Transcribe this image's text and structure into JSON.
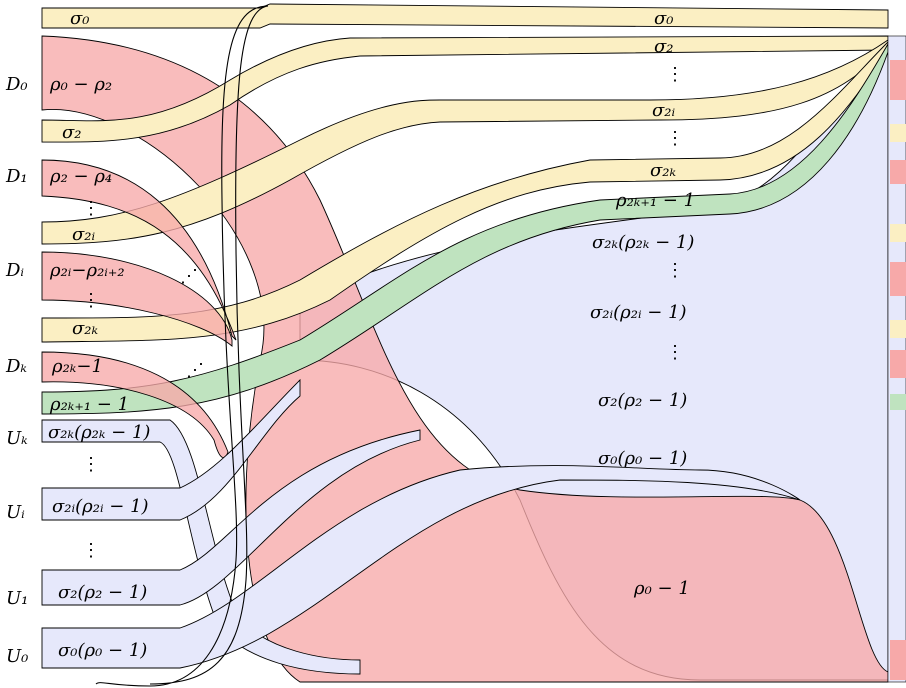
{
  "diagram": {
    "left_row_labels": {
      "D0": "D₀",
      "D1": "D₁",
      "Di": "Dᵢ",
      "Dk": "Dₖ",
      "Uk": "Uₖ",
      "Ui": "Uᵢ",
      "U1": "U₁",
      "U0": "U₀"
    },
    "left_band_labels": {
      "sigma0": "σ₀",
      "rho0_minus_rho2": "ρ₀ − ρ₂",
      "sigma2": "σ₂",
      "rho2_minus_rho4": "ρ₂ − ρ₄",
      "sigma2i": "σ₂ᵢ",
      "rho2i_minus_rho2i2": "ρ₂ᵢ−ρ₂ᵢ₊₂",
      "sigma2k": "σ₂ₖ",
      "rho2k_minus1": "ρ₂ₖ−1",
      "rho2k1_minus1": "ρ₂ₖ₊₁ − 1",
      "sigma2k_rho2k_minus1": "σ₂ₖ(ρ₂ₖ − 1)",
      "sigma2i_rho2i_minus1": "σ₂ᵢ(ρ₂ᵢ − 1)",
      "sigma2_rho2_minus1": "σ₂(ρ₂ − 1)",
      "sigma0_rho0_minus1": "σ₀(ρ₀ − 1)"
    },
    "right_band_labels": {
      "sigma0": "σ₀",
      "sigma2": "σ₂",
      "sigma2i": "σ₂ᵢ",
      "sigma2k": "σ₂ₖ",
      "rho2k1_minus1": "ρ₂ₖ₊₁ − 1",
      "sigma2k_rho2k_minus1": "σ₂ₖ(ρ₂ₖ − 1)",
      "sigma2i_rho2i_minus1": "σ₂ᵢ(ρ₂ᵢ − 1)",
      "sigma2_rho2_minus1": "σ₂(ρ₂ − 1)",
      "sigma0_rho0_minus1": "σ₀(ρ₀ − 1)",
      "rho0_minus1": "ρ₀ − 1"
    },
    "ellipsis_vertical": "⋮",
    "ellipsis_diag": "⋰",
    "colors": {
      "yellow": "#fbefc3",
      "pink": "#f7a9a9",
      "blue": "#e6e8fb",
      "green": "#bfe3bf"
    }
  }
}
